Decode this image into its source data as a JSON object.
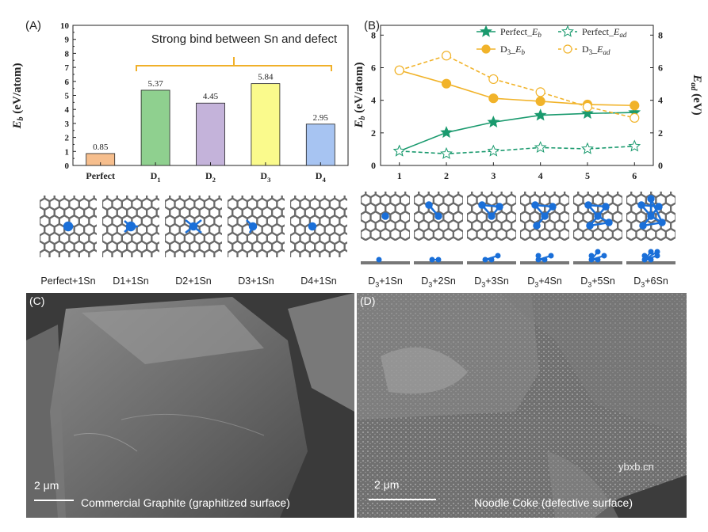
{
  "panelA": {
    "label": "(A)",
    "annotation": "Strong bind between Sn and defect",
    "chart_data": {
      "type": "bar",
      "ylabel": "E_b (eV/atom)",
      "ylim": [
        0,
        10
      ],
      "categories": [
        "Perfect",
        "D1",
        "D2",
        "D3",
        "D4"
      ],
      "values": [
        0.85,
        5.37,
        4.45,
        5.84,
        2.95
      ],
      "value_labels": [
        "0.85",
        "5.37",
        "4.45",
        "5.84",
        "2.95"
      ],
      "colors": [
        "#f6be8d",
        "#8fd08f",
        "#c4b3da",
        "#fafa8c",
        "#a7c4f2"
      ],
      "yticks": [
        "0",
        "1",
        "2",
        "3",
        "4",
        "5",
        "6",
        "7",
        "8",
        "9",
        "10"
      ]
    },
    "structure_labels": [
      "Perfect+1Sn",
      "D1+1Sn",
      "D2+1Sn",
      "D3+1Sn",
      "D4+1Sn"
    ]
  },
  "panelB": {
    "label": "(B)",
    "chart_data": {
      "type": "line",
      "x": [
        1,
        2,
        3,
        4,
        5,
        6
      ],
      "ylabel_left": "E_b (eV/atom)",
      "ylabel_right": "E_ad (eV)",
      "ylim": [
        0,
        8.6
      ],
      "yticks": [
        "0",
        "2",
        "4",
        "6",
        "8"
      ],
      "xticks": [
        "1",
        "2",
        "3",
        "4",
        "5",
        "6"
      ],
      "series": [
        {
          "name": "Perfect_E_b",
          "axis": "left",
          "style": "solid",
          "marker": "star-filled",
          "color": "#1a9a6e",
          "values": [
            0.88,
            2.02,
            2.66,
            3.08,
            3.19,
            3.25
          ]
        },
        {
          "name": "Perfect_E_ad",
          "axis": "right",
          "style": "dashed",
          "marker": "star-open",
          "color": "#1a9a6e",
          "values": [
            0.88,
            0.72,
            0.88,
            1.1,
            1.02,
            1.18
          ]
        },
        {
          "name": "D3_E_b",
          "axis": "left",
          "style": "solid",
          "marker": "circle-filled",
          "color": "#f1b32a",
          "values": [
            5.84,
            5.02,
            4.12,
            3.94,
            3.74,
            3.68
          ]
        },
        {
          "name": "D3_E_ad",
          "axis": "right",
          "style": "dashed",
          "marker": "circle-open",
          "color": "#f1b32a",
          "values": [
            5.84,
            6.74,
            5.3,
            4.5,
            3.6,
            2.92
          ]
        }
      ]
    },
    "structure_labels": [
      "D3+1Sn",
      "D3+2Sn",
      "D3+3Sn",
      "D3+4Sn",
      "D3+5Sn",
      "D3+6Sn"
    ]
  },
  "panelC": {
    "label": "(C)",
    "scale": "2 μm",
    "caption": "Commercial Graphite (graphitized surface)"
  },
  "panelD": {
    "label": "(D)",
    "scale": "2 μm",
    "caption": "Noodle Coke (defective surface)",
    "watermark": "ybxb.cn"
  }
}
